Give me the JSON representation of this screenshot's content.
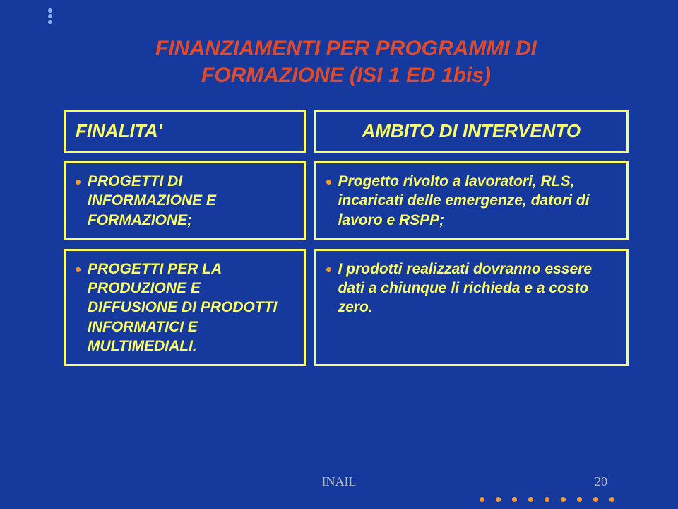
{
  "colors": {
    "background": "#15399c",
    "title": "#e04a2a",
    "header_text": "#ffff66",
    "body_text": "#ffff66",
    "border": "#ffff66",
    "bullet": "#ff9933",
    "top_bullet": "#8ab0ff",
    "footer_text": "#b8b8b8",
    "bottom_dot": "#ff9933"
  },
  "title": {
    "line1": "FINANZIAMENTI PER PROGRAMMI DI",
    "line2": "FORMAZIONE (ISI 1 ED 1bis)"
  },
  "headers": {
    "left": "FINALITA'",
    "right": "AMBITO DI INTERVENTO"
  },
  "rows": [
    {
      "left": "PROGETTI DI INFORMAZIONE E FORMAZIONE;",
      "right": "Progetto rivolto a lavoratori, RLS, incaricati delle emergenze, datori di lavoro e RSPP;"
    },
    {
      "left": "PROGETTI PER LA PRODUZIONE E DIFFUSIONE DI PRODOTTI INFORMATICI E MULTIMEDIALI.",
      "right": "I prodotti realizzati dovranno essere dati a chiunque li richieda e a costo zero."
    }
  ],
  "footer": {
    "label": "INAIL",
    "page": "20"
  },
  "layout": {
    "bottom_dot_count": 9,
    "top_bullet_count": 3
  }
}
